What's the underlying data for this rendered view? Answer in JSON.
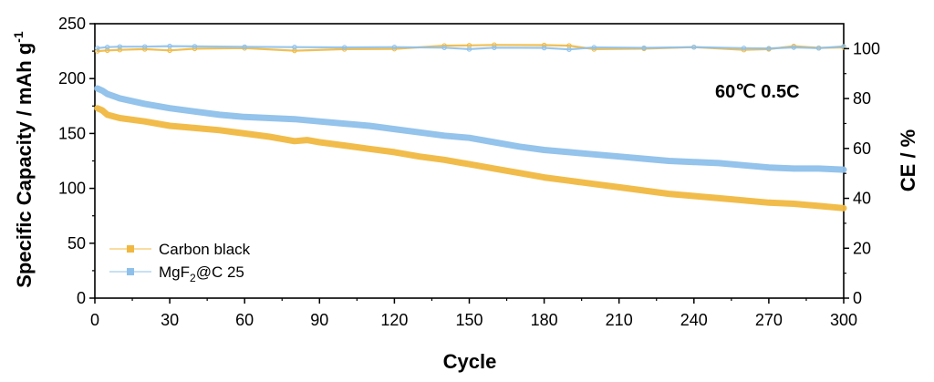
{
  "chart_data": {
    "type": "line",
    "annotation": "60℃ 0.5C",
    "xlabel": "Cycle",
    "ylabel": "Specific Capacity / mAh g",
    "ylabel_superscript": "-1",
    "y2label": "CE / %",
    "xlim": [
      0,
      300
    ],
    "ylim": [
      0,
      250
    ],
    "y2lim": [
      0,
      110
    ],
    "x_ticks": [
      "0",
      "30",
      "60",
      "90",
      "120",
      "150",
      "180",
      "210",
      "240",
      "270",
      "300"
    ],
    "y_ticks": [
      "0",
      "50",
      "100",
      "150",
      "200",
      "250"
    ],
    "y2_ticks": [
      "0",
      "20",
      "40",
      "60",
      "80",
      "100"
    ],
    "legend_position": "bottom-left",
    "legend": [
      {
        "label": "Carbon black",
        "color": "#f0b840"
      },
      {
        "label_main": "MgF",
        "label_sub": "2",
        "label_rest": "@C 25",
        "color": "#8ec0ea"
      }
    ],
    "series": [
      {
        "name": "Carbon black",
        "axis": "left",
        "color": "#f0b840",
        "x": [
          1,
          3,
          5,
          10,
          20,
          30,
          40,
          50,
          60,
          70,
          75,
          80,
          85,
          90,
          100,
          110,
          120,
          130,
          140,
          150,
          160,
          170,
          180,
          190,
          200,
          210,
          220,
          230,
          240,
          250,
          260,
          270,
          280,
          290,
          300
        ],
        "values": [
          173,
          171,
          167,
          164,
          161,
          157,
          155,
          153,
          150,
          147,
          145,
          143,
          144,
          142,
          139,
          136,
          133,
          129,
          126,
          122,
          118,
          114,
          110,
          107,
          104,
          101,
          98,
          95,
          93,
          91,
          89,
          87,
          86,
          84,
          82
        ]
      },
      {
        "name": "MgF2@C 25",
        "axis": "left",
        "color": "#8ec0ea",
        "x": [
          1,
          3,
          5,
          10,
          20,
          30,
          40,
          50,
          60,
          70,
          80,
          90,
          100,
          110,
          120,
          130,
          140,
          150,
          160,
          170,
          180,
          190,
          200,
          210,
          220,
          230,
          240,
          250,
          260,
          270,
          280,
          290,
          300
        ],
        "values": [
          191,
          189,
          186,
          182,
          177,
          173,
          170,
          167,
          165,
          164,
          163,
          161,
          159,
          157,
          154,
          151,
          148,
          146,
          142,
          138,
          135,
          133,
          131,
          129,
          127,
          125,
          124,
          123,
          121,
          119,
          118,
          118,
          117
        ]
      },
      {
        "name": "Carbon black CE",
        "axis": "right",
        "color": "#f0b840",
        "x": [
          1,
          5,
          10,
          20,
          30,
          40,
          60,
          80,
          100,
          120,
          140,
          150,
          160,
          180,
          190,
          200,
          220,
          240,
          260,
          270,
          280,
          290,
          300
        ],
        "values": [
          99.0,
          99.3,
          99.5,
          99.8,
          99.3,
          100.0,
          100.2,
          99.2,
          99.8,
          99.9,
          101.2,
          101.3,
          101.5,
          101.4,
          101.2,
          99.8,
          100.0,
          100.6,
          99.5,
          99.8,
          101.0,
          100.3,
          100.5
        ]
      },
      {
        "name": "MgF2@C 25 CE",
        "axis": "right",
        "color": "#8ec0ea",
        "x": [
          1,
          5,
          10,
          20,
          30,
          40,
          60,
          80,
          100,
          120,
          140,
          150,
          160,
          180,
          190,
          200,
          220,
          240,
          260,
          270,
          280,
          290,
          300
        ],
        "values": [
          100.2,
          100.6,
          100.8,
          100.8,
          101.0,
          100.9,
          100.7,
          100.6,
          100.5,
          100.6,
          100.4,
          99.8,
          100.4,
          100.3,
          99.7,
          100.5,
          100.3,
          100.6,
          100.2,
          100.1,
          100.5,
          100.2,
          100.9
        ]
      }
    ]
  }
}
